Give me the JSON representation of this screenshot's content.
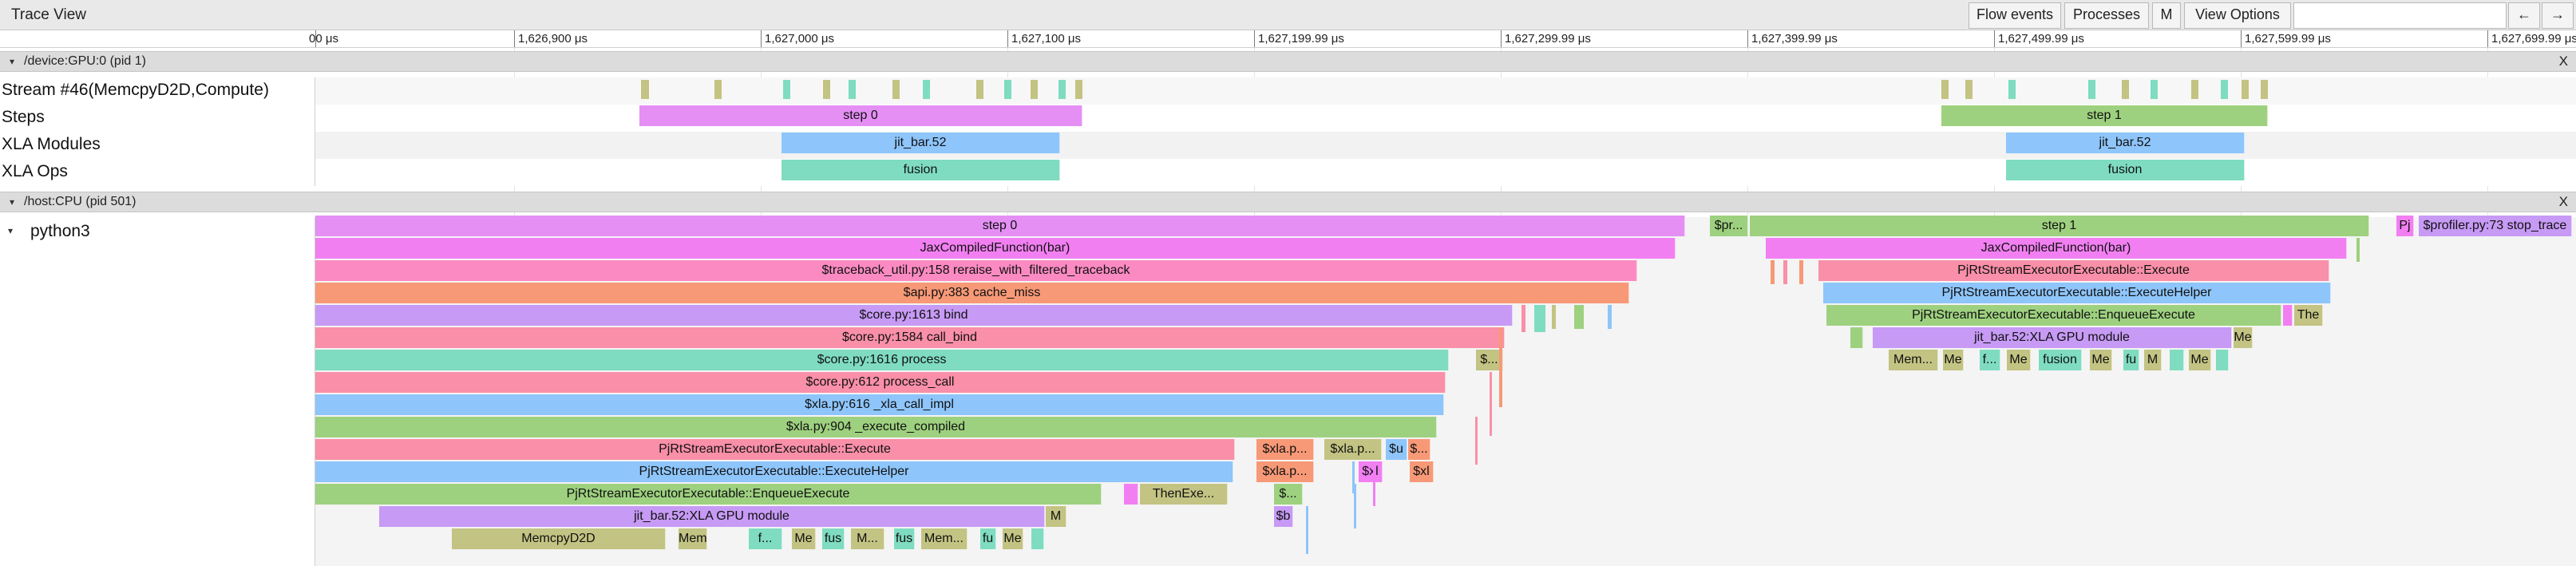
{
  "app": {
    "title": "Trace View",
    "toolbar": {
      "flow_events": "Flow events",
      "processes": "Processes",
      "m": "M",
      "view_options": "View Options",
      "search_value": "",
      "prev": "←",
      "next": "→"
    }
  },
  "ruler": {
    "ticks": [
      "00 μs",
      "1,626,900 μs",
      "1,627,000 μs",
      "1,627,100 μs",
      "1,627,199.99 μs",
      "1,627,299.99 μs",
      "1,627,399.99 μs",
      "1,627,499.99 μs",
      "1,627,599.99 μs",
      "1,627,699.99 μs"
    ]
  },
  "colors": {
    "purple": "#e58ff5",
    "green": "#9ed17f",
    "blue": "#8ec5fb",
    "teal": "#7fdcc0",
    "olive": "#c3c383",
    "pink": "#fb8ac2",
    "salmon": "#f79977",
    "rose": "#f98fa8",
    "lilac": "#c79af5",
    "magenta": "#f27ff2"
  },
  "processes": {
    "gpu": {
      "label": "/device:GPU:0 (pid 1)",
      "close": "X",
      "tracks": [
        "Stream #46(MemcpyD2D,Compute)",
        "Steps",
        "XLA Modules",
        "XLA Ops"
      ],
      "steps": [
        "step 0",
        "step 1"
      ],
      "modules": [
        "jit_bar.52",
        "jit_bar.52"
      ],
      "ops": [
        "fusion",
        "fusion"
      ]
    },
    "host": {
      "label": "/host:CPU (pid 501)",
      "close": "X",
      "thread": "python3",
      "stack": [
        "step 0",
        "JaxCompiledFunction(bar)",
        "$traceback_util.py:158 reraise_with_filtered_traceback",
        "$api.py:383 cache_miss",
        "$core.py:1613 bind",
        "$core.py:1584 call_bind",
        "$core.py:1616 process",
        "$core.py:612 process_call",
        "$xla.py:616 _xla_call_impl",
        "$xla.py:904 _execute_compiled",
        "PjRtStreamExecutorExecutable::Execute",
        "PjRtStreamExecutorExecutable::ExecuteHelper",
        "PjRtStreamExecutorExecutable::EnqueueExecute",
        "jit_bar.52:XLA GPU module",
        "MemcpyD2D"
      ],
      "small": {
        "then_exe": "ThenExe...",
        "m1": "M",
        "m2": "Me",
        "xla_p1": "$xla.p...",
        "xla_p2": "$xla.p...",
        "xla_p3": "$xla.p...",
        "s_dollar": "$...",
        "su": "$u",
        "sx": "$...",
        "sxl1": "$xl",
        "sxl2": "$xl",
        "s_dots": "$...",
        "sb": "$b",
        "mem1": "Mem",
        "f1": "f...",
        "me1": "Me",
        "fus1": "fus",
        "m_dot": "M...",
        "fus2": "fus",
        "mem2": "Mem...",
        "fu1": "fu",
        "me_b": "Me"
      },
      "step1_stack": {
        "pr": "$pr...",
        "step": "step 1",
        "pj": "Pj",
        "stop_trace": "$profiler.py:73 stop_trace",
        "jax": "JaxCompiledFunction(bar)",
        "execute": "PjRtStreamExecutorExecutable::Execute",
        "helper": "PjRtStreamExecutorExecutable::ExecuteHelper",
        "enqueue": "PjRtStreamExecutorExecutable::EnqueueExecute",
        "the": "The",
        "gpu_module": "jit_bar.52:XLA GPU module",
        "me": "Me",
        "ops": [
          "Mem...",
          "Me",
          "f...",
          "Me",
          "fusion",
          "Me",
          "fu",
          "M",
          "Me"
        ]
      }
    }
  }
}
